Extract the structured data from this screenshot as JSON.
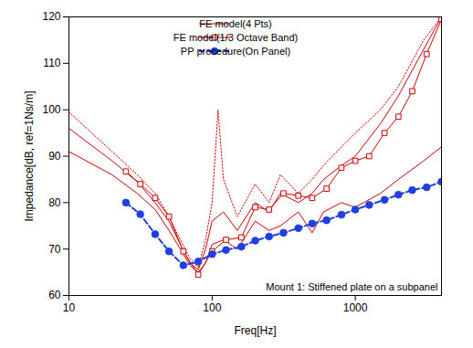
{
  "chart_data": {
    "type": "line",
    "x_label": "Freq[Hz]",
    "y_label": "Impedance[dB, ref=1Ns/m]",
    "annotation": "Mount 1: Stiffened plate on a subpanel",
    "log": "x",
    "grid": false,
    "legend": "top",
    "xlim": [
      10,
      4000
    ],
    "xticks": [
      10,
      100,
      1000
    ],
    "ylim": [
      60,
      120
    ],
    "yticks": [
      60,
      70,
      80,
      90,
      100,
      110,
      120
    ],
    "series": [
      {
        "name": "FE model(4 Pts)",
        "color": "#cc0000",
        "line_style": "solid",
        "curves": [
          {
            "line_style": "solid",
            "x": [
              10,
              20,
              30,
              40,
              50,
              60,
              70,
              80,
              90,
              100,
              120,
              150,
              200,
              250,
              300,
              400,
              500,
              600,
              800,
              1000,
              1500,
              2000,
              3000,
              4000
            ],
            "values": [
              91,
              86,
              82,
              78.5,
              74,
              70,
              66.5,
              65,
              67,
              71,
              72,
              70,
              76,
              74,
              75,
              78,
              73.5,
              78,
              80,
              79,
              82,
              85,
              89,
              92
            ]
          },
          {
            "line_style": "solid",
            "x": [
              10,
              20,
              30,
              40,
              50,
              60,
              70,
              80,
              90,
              100,
              120,
              150,
              200,
              250,
              300,
              400,
              500,
              600,
              800,
              1000,
              1500,
              2000,
              3000,
              4000
            ],
            "values": [
              96,
              89,
              84.5,
              80,
              76,
              71,
              67,
              65.5,
              70,
              76,
              78,
              74,
              80,
              78,
              82,
              80,
              82,
              85,
              88,
              90,
              97,
              103,
              113,
              120
            ]
          },
          {
            "line_style": "dotted",
            "x": [
              10,
              20,
              30,
              40,
              50,
              60,
              70,
              80,
              90,
              100,
              110,
              120,
              150,
              200,
              250,
              300,
              400,
              500,
              600,
              800,
              1000,
              1500,
              2000,
              3000,
              4000
            ],
            "values": [
              99.5,
              91,
              86,
              82,
              77,
              72,
              68,
              66,
              72,
              80,
              100,
              85,
              77,
              84,
              80,
              86,
              82,
              85,
              88,
              92,
              95,
              100,
              105,
              115,
              120
            ]
          }
        ]
      },
      {
        "name": "FE model(1/3 Octave Band)",
        "color": "#cc0000",
        "line_style": "solid",
        "marker": "square",
        "x": [
          25,
          31.5,
          40,
          50,
          63,
          80,
          100,
          125,
          160,
          200,
          250,
          315,
          400,
          500,
          630,
          800,
          1000,
          1250,
          1600,
          2000,
          2500,
          3150,
          4000
        ],
        "values": [
          86.7,
          84,
          81,
          77,
          69.5,
          64.5,
          69.5,
          72,
          72.5,
          79,
          78.5,
          82,
          81.5,
          81,
          83,
          87.5,
          89,
          90,
          95,
          98.5,
          104,
          112,
          119.5
        ]
      },
      {
        "name": "PP procedure(On Panel)",
        "color": "#1f3fe0",
        "line_style": "dashed",
        "marker": "circle",
        "x": [
          25,
          31.5,
          40,
          50,
          63,
          80,
          100,
          125,
          160,
          200,
          250,
          315,
          400,
          500,
          630,
          800,
          1000,
          1250,
          1600,
          2000,
          2500,
          3150,
          4000
        ],
        "values": [
          80,
          77.5,
          73.2,
          69.5,
          66.5,
          67.3,
          68.9,
          69.8,
          70.5,
          71.8,
          72.7,
          73.5,
          74.5,
          75.5,
          76.2,
          77.4,
          78.5,
          79.5,
          80.6,
          81.7,
          82.7,
          83.3,
          84.5
        ]
      }
    ]
  }
}
